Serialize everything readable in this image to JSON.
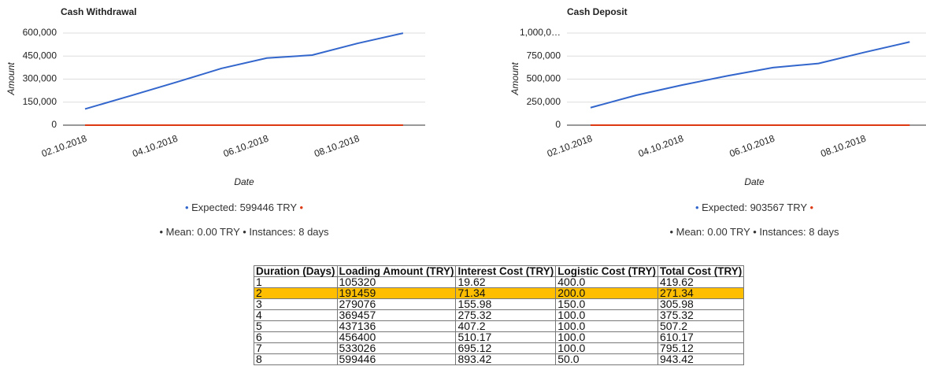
{
  "chart_data": [
    {
      "type": "line",
      "title": "Cash Withdrawal",
      "xlabel": "Date",
      "ylabel": "Amount",
      "categories": [
        "02.10.2018",
        null,
        "04.10.2018",
        null,
        "06.10.2018",
        null,
        "08.10.2018",
        null
      ],
      "series": [
        {
          "name": "Expected",
          "color": "#3366cc",
          "values": [
            105320,
            191459,
            279076,
            369457,
            437136,
            456400,
            533026,
            599446
          ]
        },
        {
          "color": "#dc3912",
          "values": [
            0,
            0,
            0,
            0,
            0,
            0,
            0,
            0
          ]
        }
      ],
      "ylim": [
        0,
        600000
      ],
      "yticks": [
        0,
        {
          "value": 150000,
          "label": "150,000"
        },
        {
          "value": 300000,
          "label": "300,000"
        },
        {
          "value": 450000,
          "label": "450,000"
        },
        {
          "value": 600000,
          "label": "600,000"
        }
      ],
      "grid": true,
      "notes": [
        "Expected: 599446 TRY",
        "Mean: 0.00 TRY",
        "Instances: 8 days"
      ]
    },
    {
      "type": "line",
      "title": "Cash Deposit",
      "xlabel": "Date",
      "ylabel": "Amount",
      "categories": [
        "02.10.2018",
        null,
        "04.10.2018",
        null,
        "06.10.2018",
        null,
        "08.10.2018",
        null
      ],
      "series": [
        {
          "name": "Expected",
          "color": "#3366cc",
          "values": [
            190000,
            325000,
            435000,
            535000,
            625000,
            670000,
            790000,
            903567
          ]
        },
        {
          "color": "#dc3912",
          "values": [
            0,
            0,
            0,
            0,
            0,
            0,
            0,
            0
          ]
        }
      ],
      "ylim": [
        0,
        1000000
      ],
      "yticks": [
        0,
        {
          "value": 250000,
          "label": "250,000"
        },
        {
          "value": 500000,
          "label": "500,000"
        },
        {
          "value": 750000,
          "label": "750,000"
        },
        {
          "value": 1000000,
          "label": "1,000,0…"
        }
      ],
      "grid": true,
      "notes": [
        "Expected: 903567 TRY",
        "Mean: 0.00 TRY",
        "Instances: 8 days"
      ]
    }
  ],
  "table": {
    "columns": [
      "Duration (Days)",
      "Loading Amount (TRY)",
      "Interest Cost (TRY)",
      "Logistic Cost (TRY)",
      "Total Cost (TRY)"
    ],
    "highlight_row": 1,
    "rows": [
      [
        "1",
        "105320",
        "19.62",
        "400.0",
        "419.62"
      ],
      [
        "2",
        "191459",
        "71.34",
        "200.0",
        "271.34"
      ],
      [
        "3",
        "279076",
        "155.98",
        "150.0",
        "305.98"
      ],
      [
        "4",
        "369457",
        "275.32",
        "100.0",
        "375.32"
      ],
      [
        "5",
        "437136",
        "407.2",
        "100.0",
        "507.2"
      ],
      [
        "6",
        "456400",
        "510.17",
        "100.0",
        "610.17"
      ],
      [
        "7",
        "533026",
        "695.12",
        "100.0",
        "795.12"
      ],
      [
        "8",
        "599446",
        "893.42",
        "50.0",
        "943.42"
      ]
    ]
  }
}
